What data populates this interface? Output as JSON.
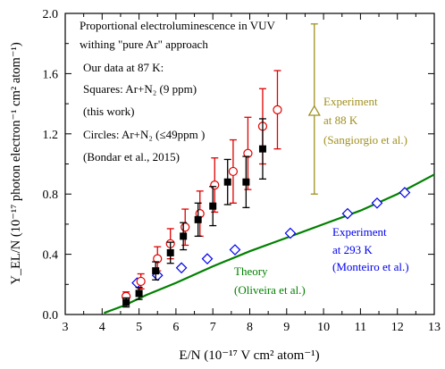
{
  "chart_data": {
    "type": "scatter",
    "xlabel": "E/N (10⁻¹⁷ V cm² atom⁻¹)",
    "ylabel": "Y_EL/N (10⁻¹⁷ photon electron⁻¹ cm² atom⁻¹)",
    "xlim": [
      3,
      13
    ],
    "ylim": [
      0,
      2.0
    ],
    "x_ticks": [
      3,
      4,
      5,
      6,
      7,
      8,
      9,
      10,
      11,
      12,
      13
    ],
    "y_ticks": [
      0.0,
      0.4,
      0.8,
      1.2,
      1.6,
      2.0
    ],
    "x_tick_labels": [
      "3",
      "4",
      "5",
      "6",
      "7",
      "8",
      "9",
      "10",
      "11",
      "12",
      "13"
    ],
    "y_tick_labels": [
      "0.0",
      "0.4",
      "0.8",
      "1.2",
      "1.6",
      "2.0"
    ],
    "grid": false,
    "series": [
      {
        "marker": "filled-square",
        "color": "#000000",
        "points": [
          {
            "x": 4.65,
            "y": 0.08,
            "err": 0.03
          },
          {
            "x": 5.0,
            "y": 0.14,
            "err": 0.04
          },
          {
            "x": 5.45,
            "y": 0.29,
            "err": 0.06
          },
          {
            "x": 5.85,
            "y": 0.41,
            "err": 0.07
          },
          {
            "x": 6.2,
            "y": 0.52,
            "err": 0.09
          },
          {
            "x": 6.6,
            "y": 0.63,
            "err": 0.11
          },
          {
            "x": 7.0,
            "y": 0.72,
            "err": 0.13
          },
          {
            "x": 7.4,
            "y": 0.88,
            "err": 0.15
          },
          {
            "x": 7.9,
            "y": 0.88,
            "err": 0.17
          },
          {
            "x": 8.35,
            "y": 1.1,
            "err": 0.2
          }
        ]
      },
      {
        "marker": "open-circle",
        "color": "#e00000",
        "points": [
          {
            "x": 4.65,
            "y": 0.12,
            "err": 0.03
          },
          {
            "x": 5.05,
            "y": 0.22,
            "err": 0.05
          },
          {
            "x": 5.5,
            "y": 0.37,
            "err": 0.08
          },
          {
            "x": 5.85,
            "y": 0.47,
            "err": 0.1
          },
          {
            "x": 6.25,
            "y": 0.58,
            "err": 0.12
          },
          {
            "x": 6.65,
            "y": 0.67,
            "err": 0.15
          },
          {
            "x": 7.05,
            "y": 0.86,
            "err": 0.18
          },
          {
            "x": 7.55,
            "y": 0.95,
            "err": 0.21
          },
          {
            "x": 7.95,
            "y": 1.07,
            "err": 0.24
          },
          {
            "x": 8.35,
            "y": 1.25,
            "err": 0.25
          },
          {
            "x": 8.75,
            "y": 1.36,
            "err": 0.26
          }
        ]
      },
      {
        "marker": "open-diamond",
        "color": "#0000ee",
        "points": [
          {
            "x": 4.95,
            "y": 0.21
          },
          {
            "x": 5.5,
            "y": 0.26
          },
          {
            "x": 6.15,
            "y": 0.31
          },
          {
            "x": 6.85,
            "y": 0.37
          },
          {
            "x": 7.6,
            "y": 0.43
          },
          {
            "x": 9.1,
            "y": 0.54
          },
          {
            "x": 10.65,
            "y": 0.67
          },
          {
            "x": 11.45,
            "y": 0.74
          },
          {
            "x": 12.2,
            "y": 0.81
          }
        ]
      },
      {
        "marker": "open-triangle",
        "color": "#a09020",
        "points": [
          {
            "x": 9.75,
            "y": 1.35,
            "err_low": 0.55,
            "err_high": 0.58
          }
        ]
      },
      {
        "marker": "line",
        "color": "#008000",
        "points": [
          {
            "x": 4.05,
            "y": 0.01
          },
          {
            "x": 4.6,
            "y": 0.06
          },
          {
            "x": 5.2,
            "y": 0.13
          },
          {
            "x": 6.0,
            "y": 0.21
          },
          {
            "x": 7.0,
            "y": 0.32
          },
          {
            "x": 8.0,
            "y": 0.42
          },
          {
            "x": 9.0,
            "y": 0.51
          },
          {
            "x": 10.0,
            "y": 0.6
          },
          {
            "x": 11.0,
            "y": 0.69
          },
          {
            "x": 12.0,
            "y": 0.8
          },
          {
            "x": 13.0,
            "y": 0.93
          }
        ]
      }
    ],
    "annotations": {
      "heading_line1": "Proportional electroluminescence in VUV",
      "heading_line2": "withing \"pure Ar\" approach",
      "ourdata_line1": "Our data at 87 K:",
      "ourdata_line2": "Squares: Ar+N₂ (9 ppm)",
      "ourdata_line3": "(this work)",
      "ourdata_line4": "Circles: Ar+N₂ (≤49ppm )",
      "ourdata_line5": "(Bondar et al., 2015)",
      "exp88_line1": "Experiment",
      "exp88_line2": "at 88 K",
      "exp88_line3": "(Sangiorgio et al.)",
      "exp293_line1": "Experiment",
      "exp293_line2": "at 293 K",
      "exp293_line3": "(Monteiro et al.)",
      "theory_line1": "Theory",
      "theory_line2": "(Oliveira et al.)"
    }
  }
}
